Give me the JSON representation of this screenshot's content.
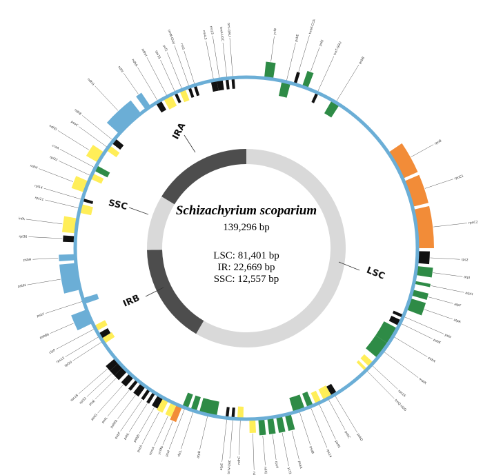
{
  "map": {
    "species": "Schizachyrium scoparium",
    "genome_length": "139,296 bp",
    "lsc_text": "LSC: 81,401 bp",
    "ir_text": "IR: 22,669 bp",
    "ssc_text": "SSC: 12,557 bp"
  },
  "regions": {
    "ira_label": "IRA",
    "irb_label": "IRB",
    "lsc_label": "LSC",
    "ssc_label": "SSC"
  },
  "colors": {
    "backbone": "#6baed6",
    "ring_light": "#d9d9d9",
    "ring_dark": "#4d4d4d",
    "photosystem": "#2e8b46",
    "rna_polymerase": "#f28c38",
    "ribosomal": "#6baed6",
    "nadh": "#ffee58",
    "trna": "#111111",
    "other": "#ffee58"
  },
  "chart_data": {
    "type": "circular_genome_map",
    "total_bp": 139296,
    "regions": [
      {
        "name": "LSC",
        "start_bp": 0,
        "end_bp": 81401,
        "shade": "light"
      },
      {
        "name": "IRB",
        "start_bp": 81401,
        "end_bp": 104070,
        "shade": "dark"
      },
      {
        "name": "SSC",
        "start_bp": 104070,
        "end_bp": 116627,
        "shade": "light"
      },
      {
        "name": "IRA",
        "start_bp": 116627,
        "end_bp": 139296,
        "shade": "dark"
      }
    ],
    "genes": [
      {
        "name": "ycf4",
        "start_deg": 6,
        "end_deg": 9,
        "strand": "out",
        "cls": "photosystem"
      },
      {
        "name": "psbE",
        "start_deg": 12,
        "end_deg": 15,
        "strand": "in",
        "cls": "photosystem"
      },
      {
        "name": "trnW-CCA",
        "start_deg": 16,
        "end_deg": 17,
        "strand": "out",
        "cls": "trna"
      },
      {
        "name": "psbJ",
        "start_deg": 19,
        "end_deg": 21,
        "strand": "out",
        "cls": "photosystem"
      },
      {
        "name": "trnT-GGU",
        "start_deg": 24,
        "end_deg": 25,
        "strand": "in",
        "cls": "trna"
      },
      {
        "name": "psbB",
        "start_deg": 30,
        "end_deg": 33,
        "strand": "in",
        "cls": "photosystem"
      },
      {
        "name": "rpoB",
        "start_deg": 56,
        "end_deg": 66,
        "strand": "out",
        "cls": "rna_polymerase"
      },
      {
        "name": "rpoC1",
        "start_deg": 67,
        "end_deg": 76,
        "strand": "out",
        "cls": "rna_polymerase"
      },
      {
        "name": "rpoC2",
        "start_deg": 77,
        "end_deg": 90,
        "strand": "out",
        "cls": "rna_polymerase"
      },
      {
        "name": "rps2",
        "start_deg": 91,
        "end_deg": 95,
        "strand": "out",
        "cls": "trna"
      },
      {
        "name": "atpI",
        "start_deg": 96,
        "end_deg": 99,
        "strand": "out",
        "cls": "photosystem"
      },
      {
        "name": "atpH",
        "start_deg": 101,
        "end_deg": 102,
        "strand": "out",
        "cls": "photosystem"
      },
      {
        "name": "atpF",
        "start_deg": 104,
        "end_deg": 106,
        "strand": "out",
        "cls": "photosystem"
      },
      {
        "name": "atpA",
        "start_deg": 107,
        "end_deg": 111,
        "strand": "out",
        "cls": "photosystem"
      },
      {
        "name": "psbI",
        "start_deg": 113,
        "end_deg": 114,
        "strand": "in",
        "cls": "trna"
      },
      {
        "name": "psbK",
        "start_deg": 115,
        "end_deg": 117,
        "strand": "in",
        "cls": "trna"
      },
      {
        "name": "psbA",
        "start_deg": 118,
        "end_deg": 124,
        "strand": "in",
        "cls": "photosystem"
      },
      {
        "name": "matK",
        "start_deg": 124,
        "end_deg": 130,
        "strand": "in",
        "cls": "photosystem"
      },
      {
        "name": "rps16",
        "start_deg": 132,
        "end_deg": 134,
        "strand": "in",
        "cls": "other"
      },
      {
        "name": "trnQ-UUG",
        "start_deg": 135,
        "end_deg": 136,
        "strand": "in",
        "cls": "other"
      },
      {
        "name": "psbD",
        "start_deg": 148,
        "end_deg": 150,
        "strand": "in",
        "cls": "trna"
      },
      {
        "name": "psbC",
        "start_deg": 150,
        "end_deg": 153,
        "strand": "in",
        "cls": "other"
      },
      {
        "name": "petN",
        "start_deg": 154,
        "end_deg": 156,
        "strand": "in",
        "cls": "other"
      },
      {
        "name": "rps14",
        "start_deg": 157,
        "end_deg": 159,
        "strand": "in",
        "cls": "photosystem"
      },
      {
        "name": "psaB",
        "start_deg": 160,
        "end_deg": 164,
        "strand": "in",
        "cls": "photosystem"
      },
      {
        "name": "psaA",
        "start_deg": 165,
        "end_deg": 167,
        "strand": "out",
        "cls": "photosystem"
      },
      {
        "name": "ycf3",
        "start_deg": 168,
        "end_deg": 170,
        "strand": "out",
        "cls": "photosystem"
      },
      {
        "name": "rps4",
        "start_deg": 171,
        "end_deg": 173,
        "strand": "out",
        "cls": "photosystem"
      },
      {
        "name": "ndhJ",
        "start_deg": 174,
        "end_deg": 176,
        "strand": "out",
        "cls": "photosystem"
      },
      {
        "name": "ndhK",
        "start_deg": 177,
        "end_deg": 179,
        "strand": "out",
        "cls": "other"
      },
      {
        "name": "ndhC",
        "start_deg": 181,
        "end_deg": 183,
        "strand": "in",
        "cls": "other"
      },
      {
        "name": "trnV-UAC",
        "start_deg": 184,
        "end_deg": 185,
        "strand": "in",
        "cls": "trna"
      },
      {
        "name": "atpE",
        "start_deg": 186,
        "end_deg": 187,
        "strand": "in",
        "cls": "trna"
      },
      {
        "name": "atpB",
        "start_deg": 190,
        "end_deg": 196,
        "strand": "in",
        "cls": "photosystem"
      },
      {
        "name": "rbcL",
        "start_deg": 197,
        "end_deg": 199,
        "strand": "in",
        "cls": "photosystem"
      },
      {
        "name": "psaI",
        "start_deg": 200,
        "end_deg": 202,
        "strand": "in",
        "cls": "photosystem"
      },
      {
        "name": "ycf4b",
        "start_deg": 202,
        "end_deg": 204,
        "strand": "out",
        "cls": "rna_polymerase"
      },
      {
        "name": "cemA",
        "start_deg": 204,
        "end_deg": 206,
        "strand": "out",
        "cls": "other"
      },
      {
        "name": "petA",
        "start_deg": 207,
        "end_deg": 209,
        "strand": "out",
        "cls": "other"
      },
      {
        "name": "psbJb",
        "start_deg": 209,
        "end_deg": 211,
        "strand": "out",
        "cls": "trna"
      },
      {
        "name": "psbL",
        "start_deg": 212,
        "end_deg": 213,
        "strand": "out",
        "cls": "trna"
      },
      {
        "name": "psbF",
        "start_deg": 214,
        "end_deg": 215,
        "strand": "out",
        "cls": "trna"
      },
      {
        "name": "psbEb",
        "start_deg": 216,
        "end_deg": 218,
        "strand": "out",
        "cls": "trna"
      },
      {
        "name": "petL",
        "start_deg": 219,
        "end_deg": 220,
        "strand": "out",
        "cls": "trna"
      },
      {
        "name": "petG",
        "start_deg": 221,
        "end_deg": 223,
        "strand": "out",
        "cls": "trna"
      },
      {
        "name": "psaJ",
        "start_deg": 224,
        "end_deg": 226,
        "strand": "out",
        "cls": "trna"
      },
      {
        "name": "rpl33",
        "start_deg": 226,
        "end_deg": 228,
        "strand": "out",
        "cls": "trna"
      },
      {
        "name": "rps18",
        "start_deg": 228,
        "end_deg": 230,
        "strand": "out",
        "cls": "trna"
      },
      {
        "name": "rpl20",
        "start_deg": 236,
        "end_deg": 238,
        "strand": "in",
        "cls": "other"
      },
      {
        "name": "rps12",
        "start_deg": 238,
        "end_deg": 240,
        "strand": "in",
        "cls": "trna"
      },
      {
        "name": "clpP",
        "start_deg": 241,
        "end_deg": 243,
        "strand": "in",
        "cls": "other"
      },
      {
        "name": "psbBb",
        "start_deg": 244,
        "end_deg": 249,
        "strand": "out",
        "cls": "ribosomal"
      },
      {
        "name": "psbT",
        "start_deg": 251,
        "end_deg": 253,
        "strand": "in",
        "cls": "ribosomal"
      },
      {
        "name": "psbN",
        "start_deg": 256,
        "end_deg": 265,
        "strand": "out",
        "cls": "ribosomal"
      },
      {
        "name": "psbH",
        "start_deg": 266,
        "end_deg": 268,
        "strand": "out",
        "cls": "ribosomal"
      },
      {
        "name": "rpl36",
        "start_deg": 272,
        "end_deg": 274,
        "strand": "out",
        "cls": "trna"
      },
      {
        "name": "infA",
        "start_deg": 275,
        "end_deg": 280,
        "strand": "out",
        "cls": "other"
      },
      {
        "name": "rps11",
        "start_deg": 282,
        "end_deg": 285,
        "strand": "in",
        "cls": "other"
      },
      {
        "name": "rpl14",
        "start_deg": 286,
        "end_deg": 287,
        "strand": "in",
        "cls": "trna"
      },
      {
        "name": "ndhF",
        "start_deg": 289,
        "end_deg": 293,
        "strand": "out",
        "cls": "other"
      },
      {
        "name": "rpl32",
        "start_deg": 294,
        "end_deg": 296,
        "strand": "in",
        "cls": "other"
      },
      {
        "name": "ccsA",
        "start_deg": 297,
        "end_deg": 299,
        "strand": "in",
        "cls": "photosystem"
      },
      {
        "name": "ndhD",
        "start_deg": 300,
        "end_deg": 304,
        "strand": "out",
        "cls": "other"
      },
      {
        "name": "psaC",
        "start_deg": 305,
        "end_deg": 307,
        "strand": "in",
        "cls": "other"
      },
      {
        "name": "ndhE",
        "start_deg": 308,
        "end_deg": 310,
        "strand": "in",
        "cls": "trna"
      },
      {
        "name": "ndhG",
        "start_deg": 312,
        "end_deg": 322,
        "strand": "out",
        "cls": "ribosomal"
      },
      {
        "name": "ndhI",
        "start_deg": 324,
        "end_deg": 326,
        "strand": "out",
        "cls": "ribosomal"
      },
      {
        "name": "ndhA",
        "start_deg": 328,
        "end_deg": 330,
        "strand": "in",
        "cls": "trna"
      },
      {
        "name": "ndhH",
        "start_deg": 331,
        "end_deg": 334,
        "strand": "in",
        "cls": "other"
      },
      {
        "name": "rps15",
        "start_deg": 335,
        "end_deg": 336,
        "strand": "in",
        "cls": "trna"
      },
      {
        "name": "ycf1",
        "start_deg": 337,
        "end_deg": 339,
        "strand": "in",
        "cls": "other"
      },
      {
        "name": "trnN-GUU",
        "start_deg": 340,
        "end_deg": 341,
        "strand": "in",
        "cls": "trna"
      },
      {
        "name": "rrn5",
        "start_deg": 342,
        "end_deg": 343,
        "strand": "in",
        "cls": "trna"
      },
      {
        "name": "rrn4.5",
        "start_deg": 348,
        "end_deg": 350,
        "strand": "in",
        "cls": "trna"
      },
      {
        "name": "rrn23",
        "start_deg": 350,
        "end_deg": 352,
        "strand": "in",
        "cls": "trna"
      },
      {
        "name": "trnA-UGC",
        "start_deg": 353,
        "end_deg": 354,
        "strand": "in",
        "cls": "trna"
      },
      {
        "name": "trnI-GAU",
        "start_deg": 355,
        "end_deg": 356,
        "strand": "in",
        "cls": "trna"
      }
    ]
  }
}
